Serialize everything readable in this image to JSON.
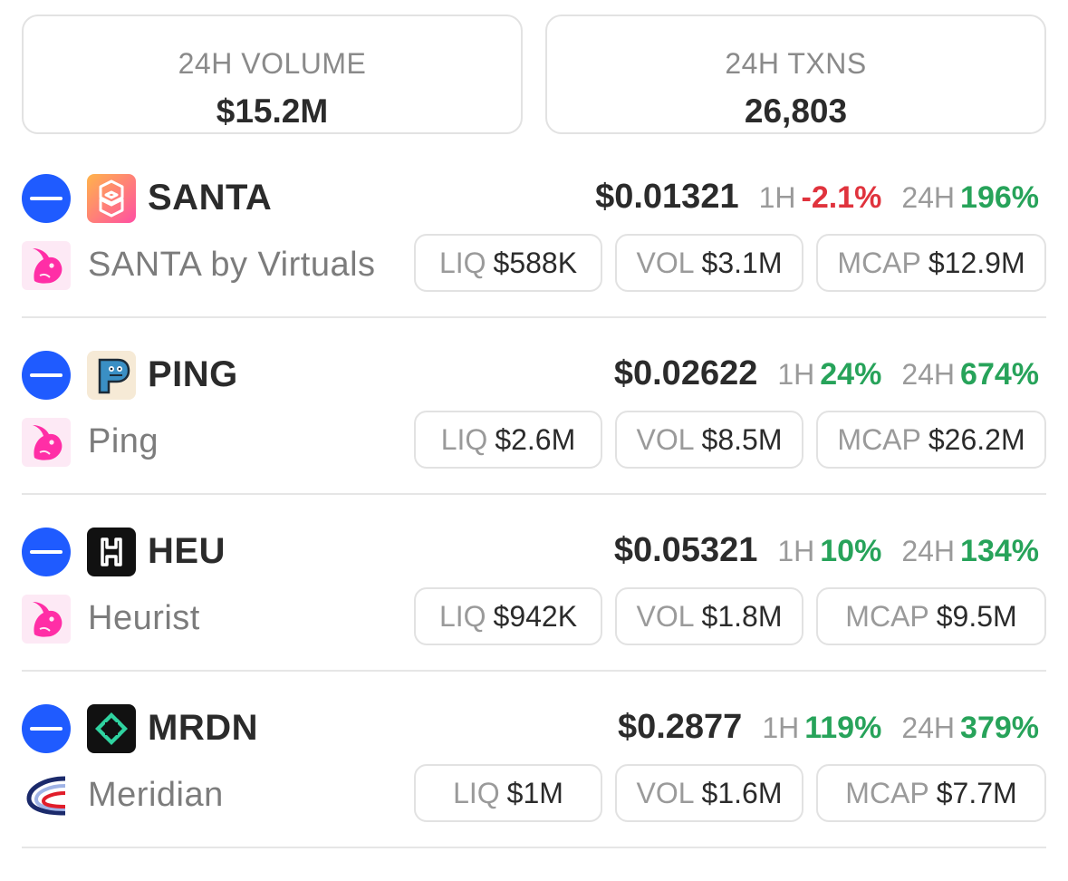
{
  "stats": {
    "volume": {
      "label": "24H VOLUME",
      "value": "$15.2M"
    },
    "txns": {
      "label": "24H TXNS",
      "value": "26,803"
    }
  },
  "labels": {
    "h1": "1H",
    "h24": "24H",
    "liq": "LIQ",
    "vol": "VOL",
    "mcap": "MCAP"
  },
  "colors": {
    "up": "#27a35a",
    "down": "#e0333d",
    "chain": "#1f5bff"
  },
  "tokens": [
    {
      "symbol": "SANTA",
      "name": "SANTA by Virtuals",
      "price": "$0.01321",
      "change_1h": "-2.1%",
      "change_24h": "196%",
      "liq": "$588K",
      "vol": "$3.1M",
      "mcap": "$12.9M",
      "chain_icon": "base-chain-icon",
      "dex_icon": "uniswap-icon"
    },
    {
      "symbol": "PING",
      "name": "Ping",
      "price": "$0.02622",
      "change_1h": "24%",
      "change_24h": "674%",
      "liq": "$2.6M",
      "vol": "$8.5M",
      "mcap": "$26.2M",
      "chain_icon": "base-chain-icon",
      "dex_icon": "uniswap-icon"
    },
    {
      "symbol": "HEU",
      "name": "Heurist",
      "price": "$0.05321",
      "change_1h": "10%",
      "change_24h": "134%",
      "liq": "$942K",
      "vol": "$1.8M",
      "mcap": "$9.5M",
      "chain_icon": "base-chain-icon",
      "dex_icon": "uniswap-icon"
    },
    {
      "symbol": "MRDN",
      "name": "Meridian",
      "price": "$0.2877",
      "change_1h": "119%",
      "change_24h": "379%",
      "liq": "$1M",
      "vol": "$1.6M",
      "mcap": "$7.7M",
      "chain_icon": "base-chain-icon",
      "dex_icon": "meridian-dex-icon"
    }
  ]
}
